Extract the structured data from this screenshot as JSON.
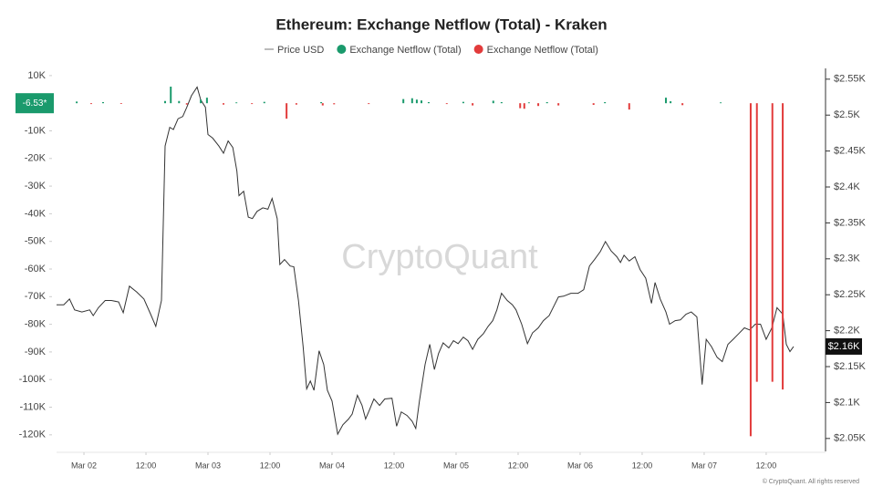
{
  "chart_data": {
    "type": "combo",
    "title": "Ethereum: Exchange Netflow (Total) - Kraken",
    "watermark": "CryptoQuant",
    "footer": "© CryptoQuant. All rights reserved",
    "current_netflow_label": "-6.53*",
    "current_price_label": "$2.16K",
    "xlim": [
      -5.3,
      142.6
    ],
    "xticks": [
      {
        "value": 0,
        "label": "Mar 02"
      },
      {
        "value": 12,
        "label": "12:00"
      },
      {
        "value": 24,
        "label": "Mar 03"
      },
      {
        "value": 36,
        "label": "12:00"
      },
      {
        "value": 48,
        "label": "Mar 04"
      },
      {
        "value": 60,
        "label": "12:00"
      },
      {
        "value": 72,
        "label": "Mar 05"
      },
      {
        "value": 84,
        "label": "12:00"
      },
      {
        "value": 96,
        "label": "Mar 06"
      },
      {
        "value": 108,
        "label": "12:00"
      },
      {
        "value": 120,
        "label": "Mar 07"
      },
      {
        "value": 132,
        "label": "12:00"
      }
    ],
    "ylim": [
      -126000,
      12600
    ],
    "yticks": [
      {
        "value": 10000,
        "label": "10K"
      },
      {
        "value": -10000,
        "label": "-10K"
      },
      {
        "value": -20000,
        "label": "-20K"
      },
      {
        "value": -30000,
        "label": "-30K"
      },
      {
        "value": -40000,
        "label": "-40K"
      },
      {
        "value": -50000,
        "label": "-50K"
      },
      {
        "value": -60000,
        "label": "-60K"
      },
      {
        "value": -70000,
        "label": "-70K"
      },
      {
        "value": -80000,
        "label": "-80K"
      },
      {
        "value": -90000,
        "label": "-90K"
      },
      {
        "value": -100000,
        "label": "-100K"
      },
      {
        "value": -110000,
        "label": "-110K"
      },
      {
        "value": -120000,
        "label": "-120K"
      }
    ],
    "y2lim": [
      2032,
      2565
    ],
    "y2ticks": [
      {
        "value": 2550,
        "label": "$2.55K"
      },
      {
        "value": 2500,
        "label": "$2.5K"
      },
      {
        "value": 2450,
        "label": "$2.45K"
      },
      {
        "value": 2400,
        "label": "$2.4K"
      },
      {
        "value": 2350,
        "label": "$2.35K"
      },
      {
        "value": 2300,
        "label": "$2.3K"
      },
      {
        "value": 2250,
        "label": "$2.25K"
      },
      {
        "value": 2200,
        "label": "$2.2K"
      },
      {
        "value": 2150,
        "label": "$2.15K"
      },
      {
        "value": 2100,
        "label": "$2.1K"
      },
      {
        "value": 2050,
        "label": "$2.05K"
      }
    ],
    "series": [
      {
        "name": "Price USD",
        "type": "line",
        "axis": "y2",
        "color": "#333333",
        "x": [
          -5.3,
          -3.9,
          -2.8,
          -1.8,
          -0.4,
          1.1,
          1.8,
          2.8,
          4.1,
          5.3,
          6.7,
          7.6,
          8.8,
          10.2,
          11.6,
          12.9,
          13.9,
          15.0,
          15.7,
          16.6,
          17.3,
          18.2,
          19.1,
          19.9,
          20.8,
          21.9,
          22.6,
          23.5,
          24.0,
          24.9,
          26.1,
          27.0,
          27.9,
          28.8,
          29.6,
          30.0,
          30.9,
          31.8,
          32.6,
          33.5,
          34.6,
          35.6,
          36.4,
          37.4,
          37.9,
          38.8,
          39.9,
          40.6,
          41.5,
          42.4,
          43.1,
          43.8,
          44.5,
          45.5,
          46.4,
          47.1,
          48.0,
          49.1,
          50.1,
          51.2,
          51.9,
          52.9,
          53.8,
          54.5,
          55.2,
          56.1,
          57.2,
          58.2,
          59.6,
          60.5,
          61.4,
          62.5,
          63.5,
          64.2,
          64.9,
          66.0,
          66.9,
          67.8,
          68.6,
          69.5,
          70.6,
          71.5,
          72.4,
          73.4,
          74.3,
          75.2,
          76.2,
          77.3,
          78.2,
          79.1,
          79.9,
          80.8,
          81.9,
          82.9,
          83.6,
          84.7,
          85.8,
          86.8,
          87.9,
          88.9,
          90.0,
          90.9,
          91.8,
          92.8,
          94.2,
          95.6,
          96.7,
          97.8,
          98.8,
          99.9,
          100.9,
          102.0,
          103.1,
          103.8,
          104.5,
          105.5,
          106.6,
          107.6,
          108.7,
          109.8,
          110.5,
          111.5,
          112.6,
          113.3,
          114.4,
          115.4,
          116.5,
          117.5,
          118.6,
          119.6,
          120.4,
          121.4,
          122.5,
          123.5,
          124.6,
          125.6,
          126.7,
          127.8,
          128.8,
          129.9,
          130.9,
          132.0,
          133.1,
          134.1,
          135.2,
          135.9,
          136.6,
          137.3
        ],
        "values": [
          2236,
          2236,
          2244,
          2229,
          2226,
          2229,
          2221,
          2232,
          2242,
          2242,
          2240,
          2225,
          2262,
          2254,
          2244,
          2223,
          2206,
          2242,
          2457,
          2483,
          2480,
          2495,
          2498,
          2511,
          2527,
          2539,
          2521,
          2511,
          2473,
          2468,
          2457,
          2447,
          2464,
          2455,
          2422,
          2388,
          2394,
          2358,
          2356,
          2366,
          2371,
          2369,
          2384,
          2356,
          2292,
          2299,
          2290,
          2289,
          2242,
          2178,
          2119,
          2130,
          2117,
          2172,
          2153,
          2117,
          2102,
          2056,
          2069,
          2077,
          2084,
          2110,
          2096,
          2077,
          2089,
          2105,
          2096,
          2105,
          2106,
          2067,
          2087,
          2082,
          2074,
          2064,
          2102,
          2153,
          2181,
          2146,
          2168,
          2183,
          2176,
          2186,
          2182,
          2191,
          2186,
          2174,
          2188,
          2196,
          2206,
          2214,
          2229,
          2252,
          2242,
          2236,
          2229,
          2209,
          2182,
          2197,
          2204,
          2214,
          2221,
          2234,
          2247,
          2248,
          2252,
          2252,
          2257,
          2290,
          2299,
          2310,
          2324,
          2311,
          2303,
          2295,
          2305,
          2297,
          2303,
          2285,
          2273,
          2238,
          2267,
          2244,
          2226,
          2209,
          2214,
          2215,
          2223,
          2226,
          2219,
          2125,
          2188,
          2178,
          2163,
          2157,
          2181,
          2188,
          2196,
          2204,
          2201,
          2209,
          2209,
          2188,
          2204,
          2232,
          2223,
          2181,
          2171,
          2178
        ]
      },
      {
        "name": "Exchange Netflow (Total)",
        "type": "bar",
        "color": "#1a9a6c",
        "x": [
          -1.4,
          3.7,
          15.7,
          16.8,
          18.4,
          22.6,
          23.8,
          29.5,
          34.9,
          45.9,
          61.8,
          63.5,
          64.4,
          65.3,
          66.7,
          73.4,
          79.2,
          80.8,
          86.1,
          89.6,
          100.8,
          112.6,
          113.5,
          123.2
        ],
        "values": [
          600,
          400,
          800,
          6000,
          800,
          1300,
          2000,
          300,
          500,
          400,
          1500,
          1800,
          1300,
          1000,
          400,
          500,
          900,
          400,
          300,
          400,
          400,
          2000,
          700,
          300
        ]
      },
      {
        "name": "Exchange Netflow (Total)",
        "type": "bar",
        "color": "#e23b3b",
        "x": [
          1.4,
          7.2,
          19.9,
          27.0,
          32.5,
          39.2,
          41.1,
          46.2,
          48.4,
          55.1,
          70.2,
          75.2,
          84.4,
          85.2,
          87.9,
          91.8,
          98.6,
          105.5,
          115.8,
          129.0,
          130.2,
          133.2,
          135.2
        ],
        "values": [
          -300,
          -200,
          -500,
          -500,
          -300,
          -5600,
          -500,
          -800,
          -400,
          -300,
          -300,
          -800,
          -1800,
          -2000,
          -1000,
          -800,
          -600,
          -2300,
          -700,
          -120500,
          -100800,
          -100800,
          -103600
        ]
      }
    ]
  }
}
